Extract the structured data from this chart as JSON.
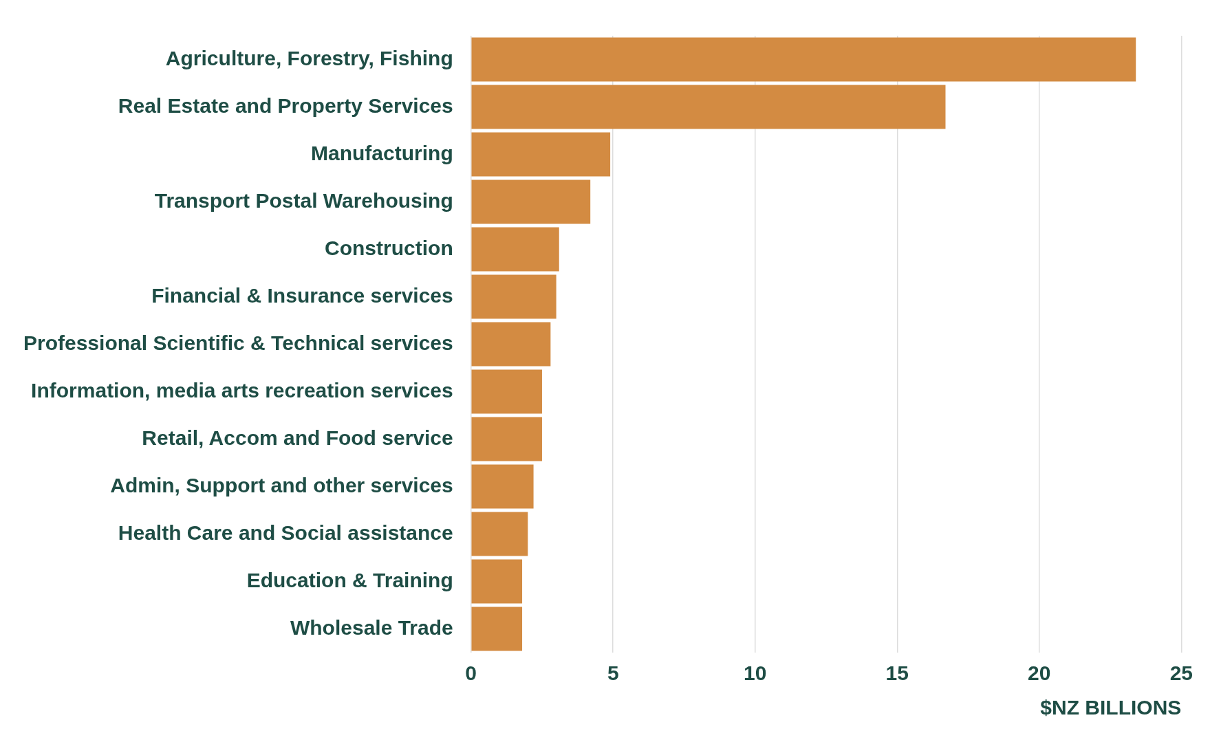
{
  "chart_data": {
    "type": "bar",
    "orientation": "horizontal",
    "xlabel": "$NZ BILLIONS",
    "categories": [
      "Agriculture, Forestry, Fishing",
      "Real Estate and Property Services",
      "Manufacturing",
      "Transport Postal Warehousing",
      "Construction",
      "Financial & Insurance services",
      "Professional Scientific & Technical services",
      "Information, media arts recreation services",
      "Retail, Accom and Food service",
      "Admin, Support and other services",
      "Health Care and Social assistance",
      "Education & Training",
      "Wholesale Trade"
    ],
    "values": [
      23.4,
      16.7,
      4.9,
      4.2,
      3.1,
      3.0,
      2.8,
      2.5,
      2.5,
      2.2,
      2.0,
      1.8,
      1.8
    ],
    "color": "#d38b42",
    "xlim": [
      0,
      25
    ],
    "xticks": [
      0,
      5,
      10,
      15,
      20,
      25
    ],
    "grid": "x",
    "legend": false
  }
}
